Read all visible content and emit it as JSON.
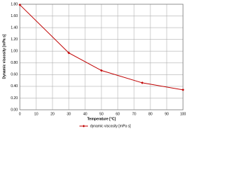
{
  "chart_data": {
    "type": "line",
    "x_label": "Temperature [°C]",
    "y_label": "Dynamic viscosity [mPa s]",
    "x": [
      0,
      30,
      50,
      75,
      100
    ],
    "series": [
      {
        "name": "dynamic viscosity [mPa s]",
        "color": "#c00000",
        "values": [
          1.79,
          0.97,
          0.67,
          0.46,
          0.34
        ]
      }
    ],
    "xlim": [
      0,
      100
    ],
    "xticks": [
      0,
      10,
      20,
      30,
      40,
      50,
      60,
      70,
      80,
      90,
      100
    ],
    "ylim": [
      0,
      1.8
    ],
    "yticks": [
      {
        "value": 0,
        "label": "0.00"
      },
      {
        "value": 0.2,
        "label": "0.20"
      },
      {
        "value": 0.4,
        "label": "0.40"
      },
      {
        "value": 0.6,
        "label": "0.60"
      },
      {
        "value": 0.8,
        "label": "0.80"
      },
      {
        "value": 1.0,
        "label": "1.00"
      },
      {
        "value": 1.2,
        "label": "1.20"
      },
      {
        "value": 1.4,
        "label": "1.40"
      },
      {
        "value": 1.6,
        "label": "1.60"
      },
      {
        "value": 1.8,
        "label": "1.80"
      }
    ],
    "grid": true,
    "legend": "bottom"
  }
}
